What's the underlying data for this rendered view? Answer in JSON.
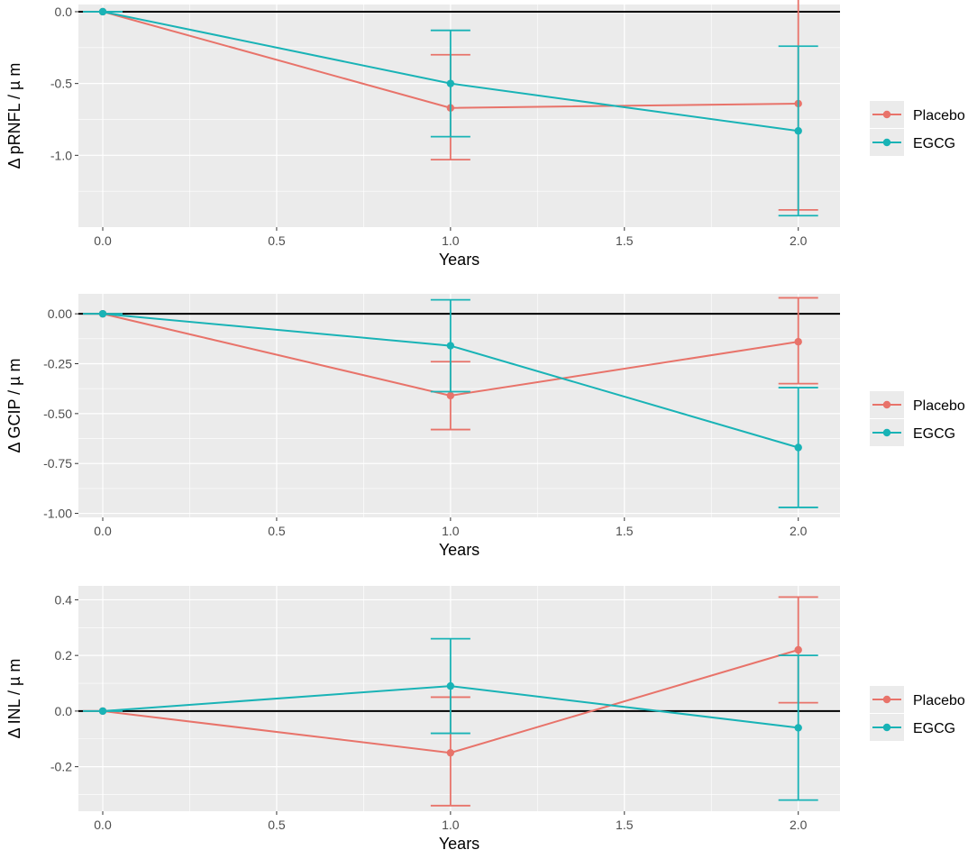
{
  "colors": {
    "placebo": "#E8736A",
    "egcg": "#19B3B6",
    "panel_bg": "#EBEBEB",
    "grid": "#FFFFFF",
    "zero_line": "#000000",
    "tick_text": "#4D4D4D"
  },
  "chart_data": [
    {
      "type": "line",
      "title": "",
      "xlabel": "Years",
      "ylabel": "Δ pRNFL / µ m",
      "x": [
        0,
        1,
        2
      ],
      "xlim": [
        -0.07,
        2.12
      ],
      "ylim": [
        -1.5,
        0.05
      ],
      "xticks": [
        0.0,
        0.5,
        1.0,
        1.5,
        2.0
      ],
      "xtick_labels": [
        "0.0",
        "0.5",
        "1.0",
        "1.5",
        "2.0"
      ],
      "yticks": [
        0.0,
        -0.5,
        -1.0
      ],
      "ytick_labels": [
        "0.0",
        "-0.5",
        "-1.0"
      ],
      "zero_line": true,
      "legend_position": "right",
      "series": [
        {
          "name": "Placebo",
          "key": "placebo",
          "values": [
            0.0,
            -0.67,
            -0.64
          ],
          "lower": [
            0.0,
            -1.03,
            -1.38
          ],
          "upper": [
            0.0,
            -0.3,
            0.11
          ]
        },
        {
          "name": "EGCG",
          "key": "egcg",
          "values": [
            0.0,
            -0.5,
            -0.83
          ],
          "lower": [
            0.0,
            -0.87,
            -1.42
          ],
          "upper": [
            0.0,
            -0.13,
            -0.24
          ]
        }
      ]
    },
    {
      "type": "line",
      "title": "",
      "xlabel": "Years",
      "ylabel": "Δ GCIP / µ m",
      "x": [
        0,
        1,
        2
      ],
      "xlim": [
        -0.07,
        2.12
      ],
      "ylim": [
        -1.02,
        0.1
      ],
      "xticks": [
        0.0,
        0.5,
        1.0,
        1.5,
        2.0
      ],
      "xtick_labels": [
        "0.0",
        "0.5",
        "1.0",
        "1.5",
        "2.0"
      ],
      "yticks": [
        0.0,
        -0.25,
        -0.5,
        -0.75,
        -1.0
      ],
      "ytick_labels": [
        "0.00",
        "-0.25",
        "-0.50",
        "-0.75",
        "-1.00"
      ],
      "zero_line": true,
      "legend_position": "right",
      "series": [
        {
          "name": "Placebo",
          "key": "placebo",
          "values": [
            0.0,
            -0.41,
            -0.14
          ],
          "lower": [
            0.0,
            -0.58,
            -0.35
          ],
          "upper": [
            0.0,
            -0.24,
            0.08
          ]
        },
        {
          "name": "EGCG",
          "key": "egcg",
          "values": [
            0.0,
            -0.16,
            -0.67
          ],
          "lower": [
            0.0,
            -0.39,
            -0.97
          ],
          "upper": [
            0.0,
            0.07,
            -0.37
          ]
        }
      ]
    },
    {
      "type": "line",
      "title": "",
      "xlabel": "Years",
      "ylabel": "Δ INL / µ m",
      "x": [
        0,
        1,
        2
      ],
      "xlim": [
        -0.07,
        2.12
      ],
      "ylim": [
        -0.36,
        0.45
      ],
      "xticks": [
        0.0,
        0.5,
        1.0,
        1.5,
        2.0
      ],
      "xtick_labels": [
        "0.0",
        "0.5",
        "1.0",
        "1.5",
        "2.0"
      ],
      "yticks": [
        0.4,
        0.2,
        0.0,
        -0.2
      ],
      "ytick_labels": [
        "0.4",
        "0.2",
        "0.0",
        "-0.2"
      ],
      "zero_line": true,
      "legend_position": "right",
      "series": [
        {
          "name": "Placebo",
          "key": "placebo",
          "values": [
            0.0,
            -0.15,
            0.22
          ],
          "lower": [
            0.0,
            -0.34,
            0.03
          ],
          "upper": [
            0.0,
            0.05,
            0.41
          ]
        },
        {
          "name": "EGCG",
          "key": "egcg",
          "values": [
            0.0,
            0.09,
            -0.06
          ],
          "lower": [
            0.0,
            -0.08,
            -0.32
          ],
          "upper": [
            0.0,
            0.26,
            0.2
          ]
        }
      ]
    }
  ]
}
